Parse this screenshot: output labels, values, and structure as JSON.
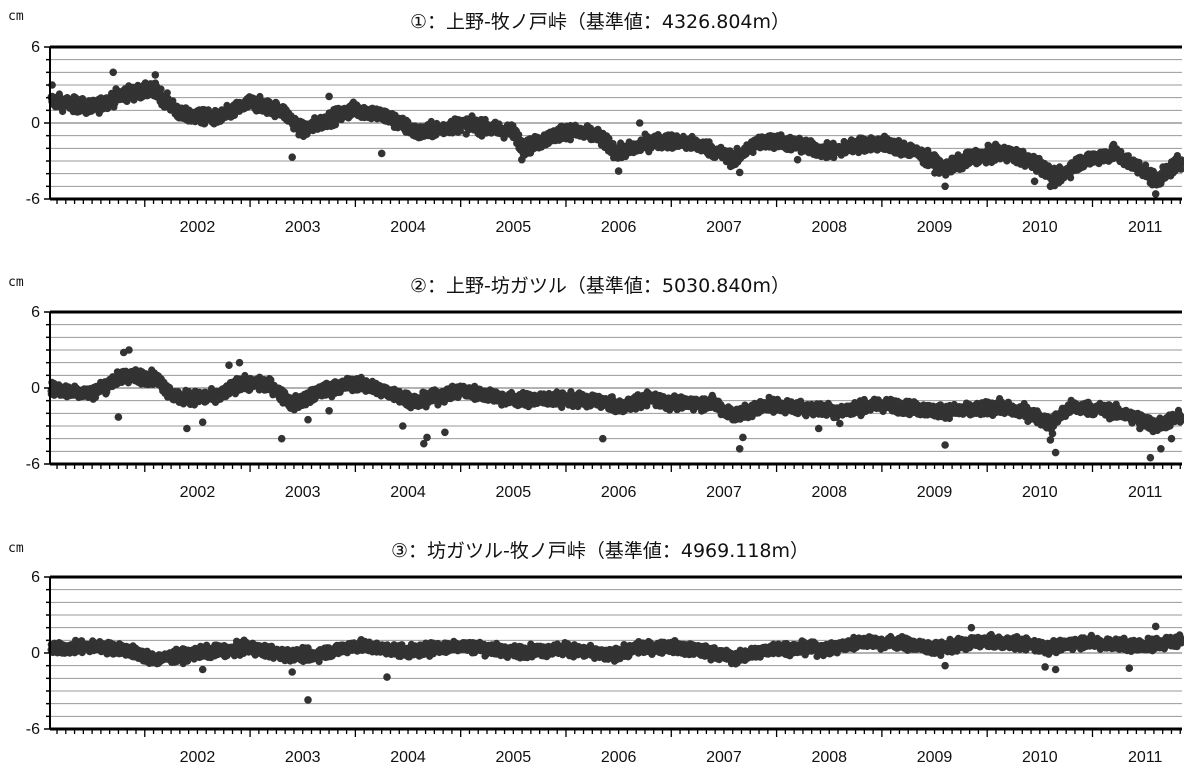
{
  "chart_data": [
    {
      "type": "scatter",
      "title": "①：上野-牧ノ戸峠（基準値：4326.804m）",
      "ylabel": "cm",
      "ylim": [
        -6,
        6
      ],
      "yticks": [
        6,
        0,
        -6
      ],
      "xlim": [
        2001.1,
        2011.85
      ],
      "xticks": [
        2002,
        2003,
        2004,
        2005,
        2006,
        2007,
        2008,
        2009,
        2010,
        2011
      ],
      "grid": true,
      "point_color": "#333333",
      "trend": [
        [
          2001.1,
          1.8
        ],
        [
          2001.5,
          1.2
        ],
        [
          2001.8,
          2.3
        ],
        [
          2002.1,
          2.6
        ],
        [
          2002.35,
          0.6
        ],
        [
          2002.7,
          0.4
        ],
        [
          2003.0,
          1.6
        ],
        [
          2003.3,
          1.0
        ],
        [
          2003.5,
          -0.6
        ],
        [
          2003.8,
          0.5
        ],
        [
          2004.0,
          1.1
        ],
        [
          2004.3,
          0.5
        ],
        [
          2004.6,
          -0.8
        ],
        [
          2005.0,
          -0.1
        ],
        [
          2005.5,
          -0.7
        ],
        [
          2005.6,
          -2.0
        ],
        [
          2006.0,
          -0.6
        ],
        [
          2006.3,
          -1.0
        ],
        [
          2006.5,
          -2.4
        ],
        [
          2006.8,
          -1.5
        ],
        [
          2007.0,
          -1.4
        ],
        [
          2007.3,
          -1.8
        ],
        [
          2007.6,
          -2.9
        ],
        [
          2007.8,
          -1.6
        ],
        [
          2008.0,
          -1.4
        ],
        [
          2008.5,
          -2.3
        ],
        [
          2008.8,
          -1.7
        ],
        [
          2009.0,
          -1.6
        ],
        [
          2009.3,
          -2.2
        ],
        [
          2009.6,
          -3.6
        ],
        [
          2009.9,
          -2.6
        ],
        [
          2010.2,
          -2.4
        ],
        [
          2010.5,
          -3.3
        ],
        [
          2010.65,
          -4.4
        ],
        [
          2010.9,
          -3.0
        ],
        [
          2011.2,
          -2.4
        ],
        [
          2011.5,
          -3.8
        ],
        [
          2011.6,
          -4.6
        ],
        [
          2011.85,
          -2.9
        ]
      ],
      "spread": 0.55,
      "outliers": [
        [
          2001.7,
          4.0
        ],
        [
          2001.12,
          3.0
        ],
        [
          2002.1,
          3.8
        ],
        [
          2003.4,
          -2.7
        ],
        [
          2003.75,
          2.1
        ],
        [
          2005.58,
          -2.9
        ],
        [
          2006.5,
          -3.8
        ],
        [
          2006.7,
          0.0
        ],
        [
          2007.65,
          -3.9
        ],
        [
          2009.6,
          -5.0
        ],
        [
          2010.6,
          -5.0
        ],
        [
          2011.6,
          -5.6
        ],
        [
          2011.2,
          -1.7
        ],
        [
          2004.25,
          -2.4
        ],
        [
          2008.2,
          -2.9
        ],
        [
          2010.45,
          -4.6
        ]
      ]
    },
    {
      "type": "scatter",
      "title": "②：上野-坊ガツル（基準値：5030.840m）",
      "ylabel": "cm",
      "ylim": [
        -6,
        6
      ],
      "yticks": [
        6,
        0,
        -6
      ],
      "xlim": [
        2001.1,
        2011.85
      ],
      "xticks": [
        2002,
        2003,
        2004,
        2005,
        2006,
        2007,
        2008,
        2009,
        2010,
        2011
      ],
      "grid": true,
      "point_color": "#333333",
      "trend": [
        [
          2001.1,
          -0.1
        ],
        [
          2001.5,
          -0.4
        ],
        [
          2001.8,
          1.0
        ],
        [
          2002.1,
          0.8
        ],
        [
          2002.3,
          -0.8
        ],
        [
          2002.7,
          -0.7
        ],
        [
          2002.9,
          0.4
        ],
        [
          2003.2,
          0.2
        ],
        [
          2003.4,
          -1.3
        ],
        [
          2003.7,
          -0.2
        ],
        [
          2004.0,
          0.4
        ],
        [
          2004.3,
          -0.3
        ],
        [
          2004.6,
          -1.1
        ],
        [
          2005.0,
          -0.2
        ],
        [
          2005.5,
          -0.9
        ],
        [
          2006.0,
          -0.9
        ],
        [
          2006.3,
          -1.0
        ],
        [
          2006.5,
          -1.5
        ],
        [
          2006.8,
          -0.8
        ],
        [
          2007.0,
          -1.2
        ],
        [
          2007.4,
          -1.2
        ],
        [
          2007.6,
          -2.2
        ],
        [
          2007.9,
          -1.3
        ],
        [
          2008.3,
          -1.6
        ],
        [
          2008.6,
          -1.8
        ],
        [
          2009.0,
          -1.3
        ],
        [
          2009.5,
          -1.8
        ],
        [
          2009.8,
          -1.8
        ],
        [
          2010.1,
          -1.5
        ],
        [
          2010.4,
          -2.0
        ],
        [
          2010.6,
          -2.8
        ],
        [
          2010.8,
          -1.5
        ],
        [
          2011.1,
          -1.7
        ],
        [
          2011.4,
          -2.3
        ],
        [
          2011.6,
          -3.0
        ],
        [
          2011.85,
          -2.2
        ]
      ],
      "spread": 0.5,
      "outliers": [
        [
          2001.8,
          2.8
        ],
        [
          2001.85,
          3.0
        ],
        [
          2001.75,
          -2.3
        ],
        [
          2002.4,
          -3.2
        ],
        [
          2002.55,
          -2.7
        ],
        [
          2002.8,
          1.8
        ],
        [
          2002.9,
          2.0
        ],
        [
          2003.3,
          -4.0
        ],
        [
          2003.55,
          -2.5
        ],
        [
          2003.75,
          -1.8
        ],
        [
          2004.45,
          -3.0
        ],
        [
          2004.65,
          -4.4
        ],
        [
          2004.68,
          -3.9
        ],
        [
          2004.85,
          -3.5
        ],
        [
          2006.35,
          -4.0
        ],
        [
          2007.65,
          -4.8
        ],
        [
          2007.68,
          -3.9
        ],
        [
          2008.4,
          -3.2
        ],
        [
          2008.6,
          -2.8
        ],
        [
          2009.6,
          -4.5
        ],
        [
          2010.6,
          -4.1
        ],
        [
          2010.65,
          -5.1
        ],
        [
          2010.62,
          -3.6
        ],
        [
          2011.55,
          -5.5
        ],
        [
          2011.65,
          -4.8
        ],
        [
          2011.75,
          -4.0
        ],
        [
          2011.45,
          -3.2
        ]
      ]
    },
    {
      "type": "scatter",
      "title": "③：坊ガツル-牧ノ戸峠（基準値：4969.118m）",
      "ylabel": "cm",
      "ylim": [
        -6,
        6
      ],
      "yticks": [
        6,
        0,
        -6
      ],
      "xlim": [
        2001.1,
        2011.85
      ],
      "xticks": [
        2002,
        2003,
        2004,
        2005,
        2006,
        2007,
        2008,
        2009,
        2010,
        2011
      ],
      "grid": true,
      "point_color": "#333333",
      "trend": [
        [
          2001.1,
          0.3
        ],
        [
          2001.5,
          0.5
        ],
        [
          2001.8,
          0.3
        ],
        [
          2002.1,
          -0.5
        ],
        [
          2002.5,
          0.0
        ],
        [
          2003.0,
          0.4
        ],
        [
          2003.3,
          -0.1
        ],
        [
          2003.6,
          -0.2
        ],
        [
          2004.0,
          0.6
        ],
        [
          2004.5,
          0.1
        ],
        [
          2005.0,
          0.6
        ],
        [
          2005.5,
          0.1
        ],
        [
          2006.0,
          0.3
        ],
        [
          2006.4,
          -0.2
        ],
        [
          2006.7,
          0.4
        ],
        [
          2007.0,
          0.5
        ],
        [
          2007.4,
          0.0
        ],
        [
          2007.6,
          -0.4
        ],
        [
          2008.0,
          0.4
        ],
        [
          2008.5,
          0.3
        ],
        [
          2008.8,
          0.9
        ],
        [
          2009.2,
          0.8
        ],
        [
          2009.5,
          0.3
        ],
        [
          2009.9,
          0.9
        ],
        [
          2010.3,
          0.8
        ],
        [
          2010.6,
          0.4
        ],
        [
          2010.9,
          0.9
        ],
        [
          2011.2,
          0.7
        ],
        [
          2011.5,
          0.6
        ],
        [
          2011.85,
          1.0
        ]
      ],
      "spread": 0.45,
      "outliers": [
        [
          2003.55,
          -3.7
        ],
        [
          2004.3,
          -1.9
        ],
        [
          2003.4,
          -1.5
        ],
        [
          2002.55,
          -1.3
        ],
        [
          2009.85,
          2.0
        ],
        [
          2011.6,
          2.1
        ],
        [
          2009.6,
          -1.0
        ],
        [
          2011.35,
          -1.2
        ],
        [
          2010.55,
          -1.1
        ],
        [
          2010.65,
          -1.3
        ]
      ]
    }
  ]
}
